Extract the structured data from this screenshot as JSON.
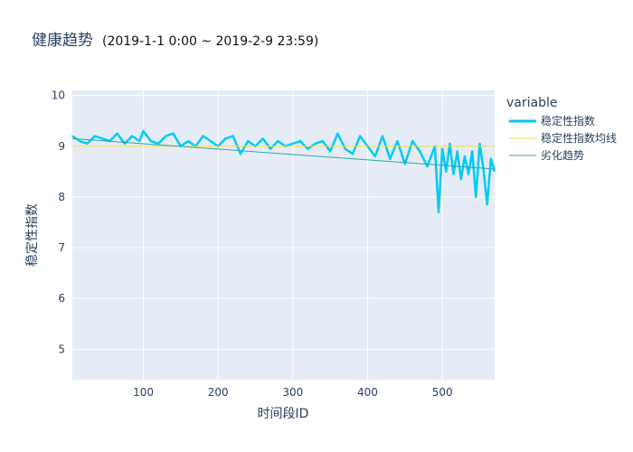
{
  "chart_data": {
    "type": "line",
    "title": "健康趋势",
    "subtitle": "(2019-1-1 0:00 ~ 2019-2-9 23:59)",
    "xlabel": "时间段ID",
    "ylabel": "稳定性指数",
    "xlim": [
      5,
      570
    ],
    "ylim": [
      4.4,
      10.1
    ],
    "xticks": [
      100,
      200,
      300,
      400,
      500
    ],
    "yticks": [
      5,
      6,
      7,
      8,
      9,
      10
    ],
    "grid": true,
    "legend_title": "variable",
    "legend_position": "right",
    "series": [
      {
        "name": "稳定性指数",
        "color": "#00cbf5",
        "x": [
          5,
          15,
          25,
          35,
          45,
          55,
          65,
          75,
          85,
          95,
          100,
          110,
          120,
          130,
          140,
          150,
          160,
          170,
          180,
          190,
          200,
          210,
          220,
          230,
          240,
          250,
          260,
          270,
          280,
          290,
          300,
          310,
          320,
          330,
          340,
          350,
          360,
          370,
          380,
          390,
          400,
          410,
          420,
          430,
          440,
          450,
          460,
          470,
          480,
          490,
          495,
          500,
          505,
          510,
          515,
          520,
          525,
          530,
          535,
          540,
          545,
          550,
          555,
          560,
          565,
          570
        ],
        "values": [
          9.2,
          9.1,
          9.05,
          9.2,
          9.15,
          9.1,
          9.25,
          9.05,
          9.2,
          9.1,
          9.3,
          9.1,
          9.05,
          9.2,
          9.25,
          9.0,
          9.1,
          9.0,
          9.2,
          9.1,
          9.0,
          9.15,
          9.2,
          8.85,
          9.1,
          9.0,
          9.15,
          8.95,
          9.1,
          9.0,
          9.05,
          9.1,
          8.95,
          9.05,
          9.1,
          8.9,
          9.25,
          8.95,
          8.85,
          9.2,
          9.0,
          8.8,
          9.2,
          8.75,
          9.1,
          8.65,
          9.1,
          8.9,
          8.6,
          9.0,
          7.7,
          8.95,
          8.5,
          9.05,
          8.45,
          8.9,
          8.35,
          8.8,
          8.45,
          8.9,
          8.0,
          9.05,
          8.55,
          7.85,
          8.75,
          8.5
        ]
      },
      {
        "name": "稳定性指数均线",
        "color": "#f7d44c",
        "x": [
          5,
          570
        ],
        "values": [
          9.0,
          9.0
        ]
      },
      {
        "name": "劣化趋势",
        "color": "#2ca89c",
        "x": [
          5,
          570
        ],
        "values": [
          9.15,
          8.55
        ]
      }
    ]
  }
}
